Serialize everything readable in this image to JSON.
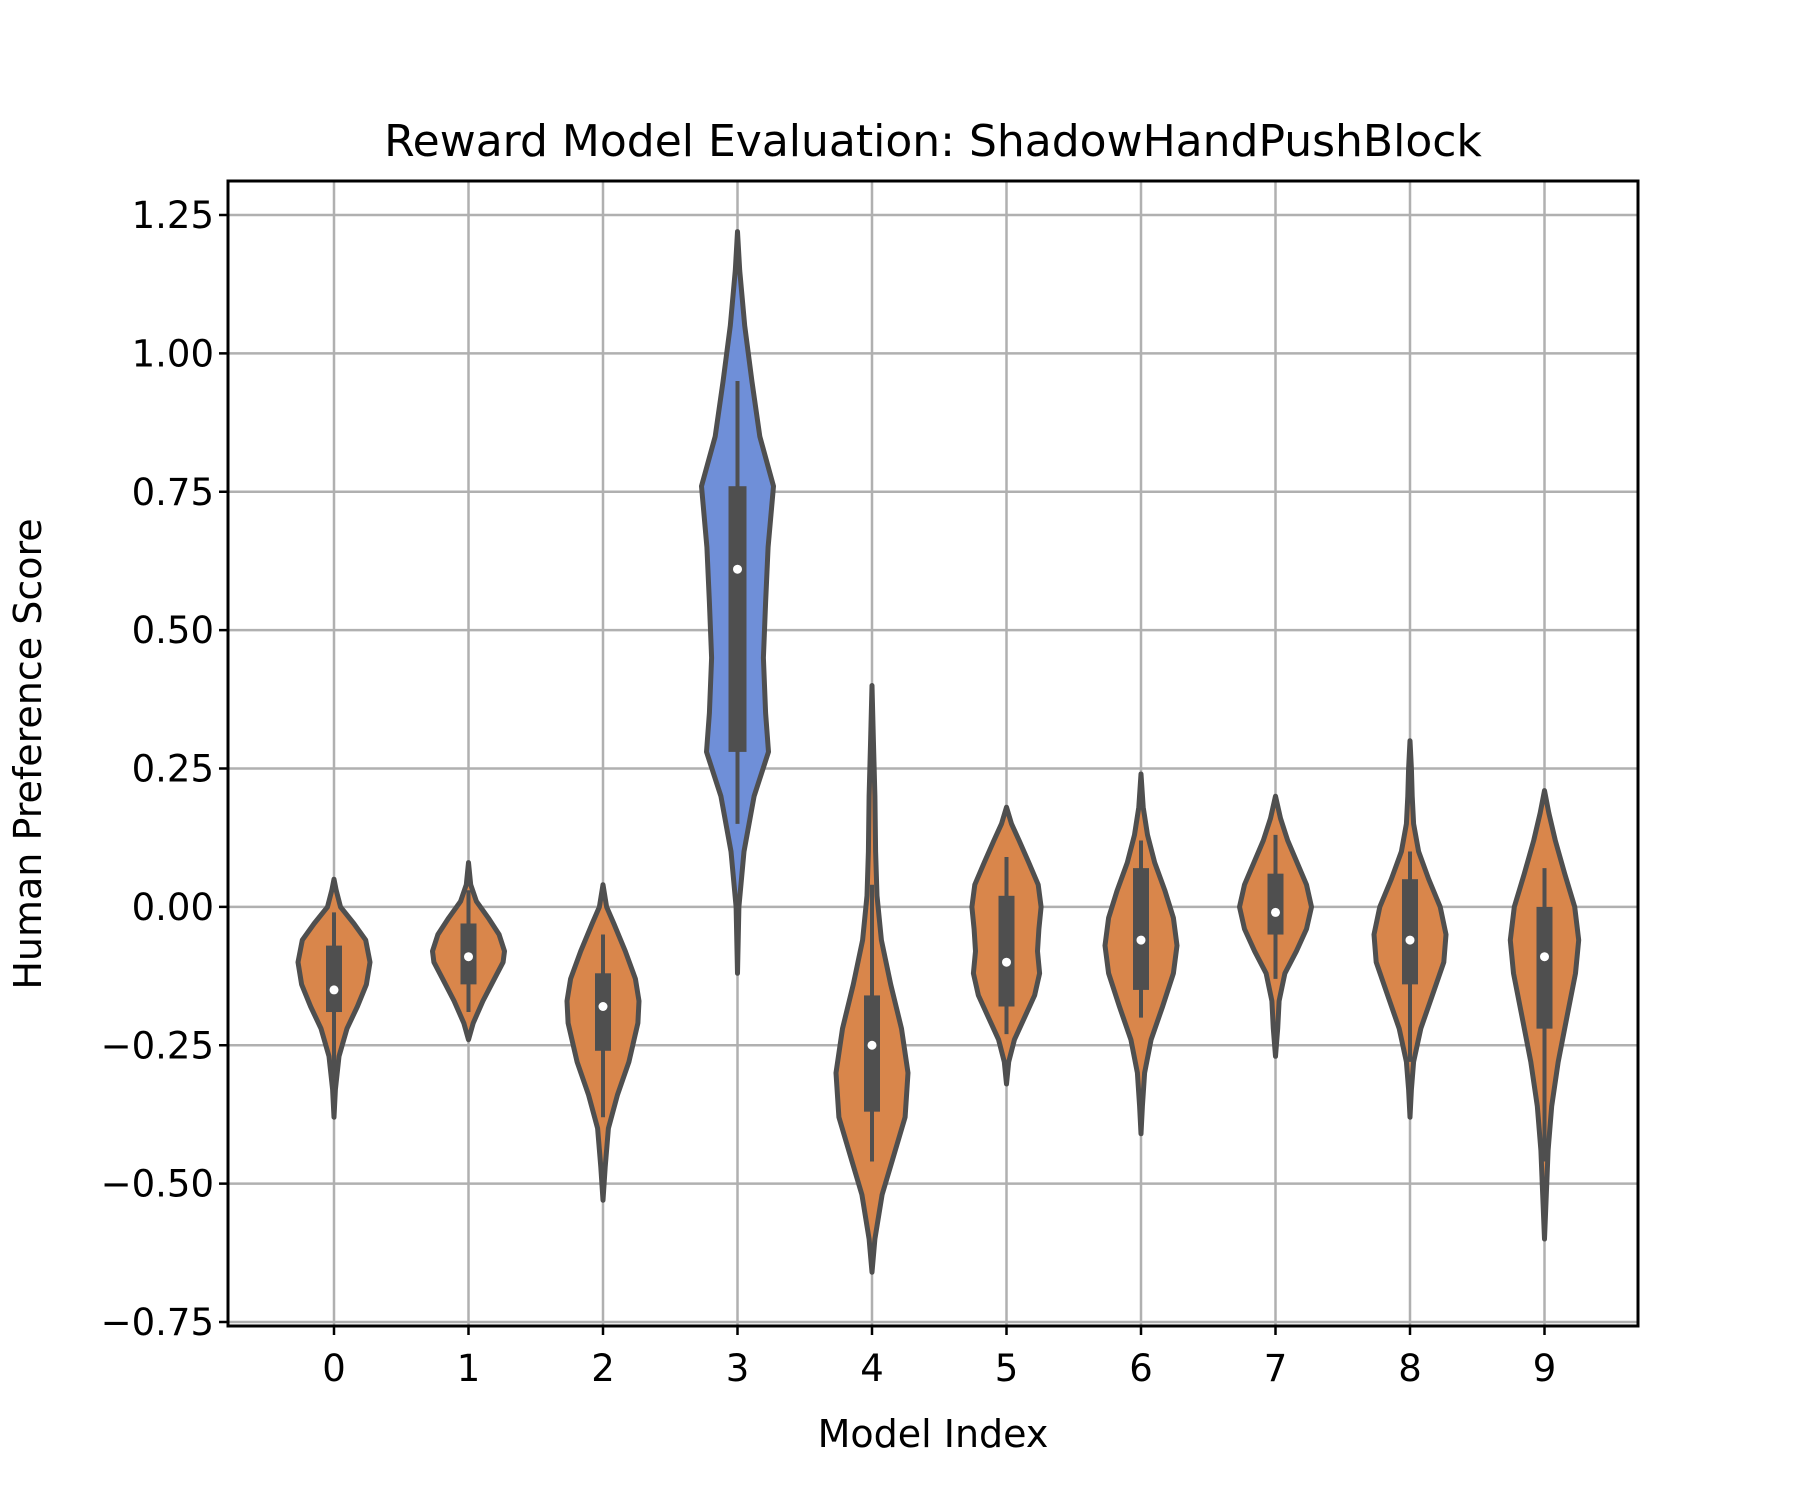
{
  "chart_data": {
    "type": "violin",
    "title": "Reward Model Evaluation: ShadowHandPushBlock",
    "xlabel": "Model Index",
    "ylabel": "Human Preference Score",
    "categories": [
      "0",
      "1",
      "2",
      "3",
      "4",
      "5",
      "6",
      "7",
      "8",
      "9"
    ],
    "ylim": [
      -0.75,
      1.32
    ],
    "yticks": [
      -0.75,
      -0.5,
      -0.25,
      0.0,
      0.25,
      0.5,
      0.75,
      1.0,
      1.25
    ],
    "ytick_labels": [
      "−0.75",
      "−0.50",
      "−0.25",
      "0.00",
      "0.25",
      "0.50",
      "0.75",
      "1.00",
      "1.25"
    ],
    "grid": true,
    "colors": {
      "default_fill": "#d9864b",
      "highlight_fill": "#6f8fd8",
      "outline": "#4f4f4f",
      "grid": "#b0b0b0"
    },
    "series": [
      {
        "category": "0",
        "median": -0.15,
        "q1": -0.19,
        "q3": -0.07,
        "whisker_low": -0.31,
        "whisker_high": -0.01,
        "min": -0.38,
        "max": 0.05,
        "highlight": false,
        "profile": [
          [
            -0.38,
            0.0
          ],
          [
            -0.33,
            0.04
          ],
          [
            -0.27,
            0.14
          ],
          [
            -0.22,
            0.36
          ],
          [
            -0.18,
            0.65
          ],
          [
            -0.14,
            0.9
          ],
          [
            -0.1,
            1.0
          ],
          [
            -0.06,
            0.88
          ],
          [
            -0.03,
            0.55
          ],
          [
            0.0,
            0.18
          ],
          [
            0.03,
            0.06
          ],
          [
            0.05,
            0.0
          ]
        ]
      },
      {
        "category": "1",
        "median": -0.09,
        "q1": -0.14,
        "q3": -0.03,
        "whisker_low": -0.19,
        "whisker_high": 0.03,
        "min": -0.24,
        "max": 0.08,
        "highlight": false,
        "profile": [
          [
            -0.24,
            0.0
          ],
          [
            -0.21,
            0.13
          ],
          [
            -0.17,
            0.4
          ],
          [
            -0.13,
            0.72
          ],
          [
            -0.1,
            0.96
          ],
          [
            -0.08,
            1.0
          ],
          [
            -0.05,
            0.85
          ],
          [
            -0.02,
            0.55
          ],
          [
            0.01,
            0.22
          ],
          [
            0.04,
            0.06
          ],
          [
            0.08,
            0.0
          ]
        ]
      },
      {
        "category": "2",
        "median": -0.18,
        "q1": -0.26,
        "q3": -0.12,
        "whisker_low": -0.38,
        "whisker_high": -0.05,
        "min": -0.53,
        "max": 0.04,
        "highlight": false,
        "profile": [
          [
            -0.53,
            0.0
          ],
          [
            -0.47,
            0.06
          ],
          [
            -0.4,
            0.15
          ],
          [
            -0.34,
            0.4
          ],
          [
            -0.28,
            0.72
          ],
          [
            -0.21,
            0.97
          ],
          [
            -0.17,
            1.0
          ],
          [
            -0.13,
            0.9
          ],
          [
            -0.08,
            0.62
          ],
          [
            -0.03,
            0.3
          ],
          [
            0.0,
            0.1
          ],
          [
            0.04,
            0.0
          ]
        ]
      },
      {
        "category": "3",
        "median": 0.61,
        "q1": 0.28,
        "q3": 0.76,
        "whisker_low": 0.15,
        "whisker_high": 0.95,
        "min": -0.12,
        "max": 1.22,
        "highlight": true,
        "profile": [
          [
            -0.12,
            0.0
          ],
          [
            0.0,
            0.04
          ],
          [
            0.1,
            0.18
          ],
          [
            0.2,
            0.46
          ],
          [
            0.28,
            0.86
          ],
          [
            0.35,
            0.78
          ],
          [
            0.45,
            0.72
          ],
          [
            0.55,
            0.78
          ],
          [
            0.65,
            0.85
          ],
          [
            0.76,
            1.0
          ],
          [
            0.85,
            0.62
          ],
          [
            0.95,
            0.4
          ],
          [
            1.05,
            0.2
          ],
          [
            1.15,
            0.06
          ],
          [
            1.22,
            0.0
          ]
        ]
      },
      {
        "category": "4",
        "median": -0.25,
        "q1": -0.37,
        "q3": -0.16,
        "whisker_low": -0.46,
        "whisker_high": 0.04,
        "min": -0.66,
        "max": 0.4,
        "highlight": false,
        "profile": [
          [
            -0.66,
            0.0
          ],
          [
            -0.6,
            0.08
          ],
          [
            -0.52,
            0.28
          ],
          [
            -0.45,
            0.6
          ],
          [
            -0.38,
            0.92
          ],
          [
            -0.3,
            1.0
          ],
          [
            -0.22,
            0.82
          ],
          [
            -0.14,
            0.52
          ],
          [
            -0.06,
            0.26
          ],
          [
            0.02,
            0.14
          ],
          [
            0.1,
            0.1
          ],
          [
            0.2,
            0.08
          ],
          [
            0.3,
            0.04
          ],
          [
            0.4,
            0.0
          ]
        ]
      },
      {
        "category": "5",
        "median": -0.1,
        "q1": -0.18,
        "q3": 0.02,
        "whisker_low": -0.23,
        "whisker_high": 0.09,
        "min": -0.32,
        "max": 0.18,
        "highlight": false,
        "profile": [
          [
            -0.32,
            0.0
          ],
          [
            -0.28,
            0.06
          ],
          [
            -0.24,
            0.22
          ],
          [
            -0.2,
            0.5
          ],
          [
            -0.16,
            0.78
          ],
          [
            -0.12,
            0.92
          ],
          [
            -0.08,
            0.86
          ],
          [
            -0.04,
            0.9
          ],
          [
            0.0,
            0.96
          ],
          [
            0.04,
            0.88
          ],
          [
            0.08,
            0.62
          ],
          [
            0.12,
            0.35
          ],
          [
            0.15,
            0.14
          ],
          [
            0.18,
            0.0
          ]
        ]
      },
      {
        "category": "6",
        "median": -0.06,
        "q1": -0.15,
        "q3": 0.07,
        "whisker_low": -0.2,
        "whisker_high": 0.12,
        "min": -0.41,
        "max": 0.24,
        "highlight": false,
        "profile": [
          [
            -0.41,
            0.0
          ],
          [
            -0.36,
            0.04
          ],
          [
            -0.3,
            0.1
          ],
          [
            -0.24,
            0.28
          ],
          [
            -0.18,
            0.6
          ],
          [
            -0.12,
            0.9
          ],
          [
            -0.07,
            1.0
          ],
          [
            -0.02,
            0.9
          ],
          [
            0.03,
            0.66
          ],
          [
            0.08,
            0.38
          ],
          [
            0.13,
            0.18
          ],
          [
            0.18,
            0.06
          ],
          [
            0.24,
            0.0
          ]
        ]
      },
      {
        "category": "7",
        "median": -0.01,
        "q1": -0.05,
        "q3": 0.06,
        "whisker_low": -0.13,
        "whisker_high": 0.13,
        "min": -0.27,
        "max": 0.2,
        "highlight": false,
        "profile": [
          [
            -0.27,
            0.0
          ],
          [
            -0.22,
            0.06
          ],
          [
            -0.17,
            0.1
          ],
          [
            -0.12,
            0.26
          ],
          [
            -0.08,
            0.58
          ],
          [
            -0.04,
            0.86
          ],
          [
            0.0,
            1.0
          ],
          [
            0.04,
            0.86
          ],
          [
            0.08,
            0.6
          ],
          [
            0.12,
            0.34
          ],
          [
            0.16,
            0.14
          ],
          [
            0.2,
            0.0
          ]
        ]
      },
      {
        "category": "8",
        "median": -0.06,
        "q1": -0.14,
        "q3": 0.05,
        "whisker_low": -0.28,
        "whisker_high": 0.1,
        "min": -0.38,
        "max": 0.3,
        "highlight": false,
        "profile": [
          [
            -0.38,
            0.0
          ],
          [
            -0.33,
            0.04
          ],
          [
            -0.28,
            0.1
          ],
          [
            -0.22,
            0.3
          ],
          [
            -0.16,
            0.62
          ],
          [
            -0.1,
            0.94
          ],
          [
            -0.05,
            1.0
          ],
          [
            0.0,
            0.84
          ],
          [
            0.05,
            0.52
          ],
          [
            0.1,
            0.24
          ],
          [
            0.15,
            0.1
          ],
          [
            0.2,
            0.06
          ],
          [
            0.25,
            0.04
          ],
          [
            0.3,
            0.0
          ]
        ]
      },
      {
        "category": "9",
        "median": -0.09,
        "q1": -0.22,
        "q3": 0.0,
        "whisker_low": -0.46,
        "whisker_high": 0.07,
        "min": -0.6,
        "max": 0.21,
        "highlight": false,
        "profile": [
          [
            -0.6,
            0.0
          ],
          [
            -0.52,
            0.05
          ],
          [
            -0.44,
            0.1
          ],
          [
            -0.36,
            0.2
          ],
          [
            -0.28,
            0.38
          ],
          [
            -0.2,
            0.62
          ],
          [
            -0.12,
            0.86
          ],
          [
            -0.06,
            0.95
          ],
          [
            0.0,
            0.84
          ],
          [
            0.06,
            0.56
          ],
          [
            0.12,
            0.3
          ],
          [
            0.17,
            0.12
          ],
          [
            0.21,
            0.0
          ]
        ]
      }
    ]
  }
}
